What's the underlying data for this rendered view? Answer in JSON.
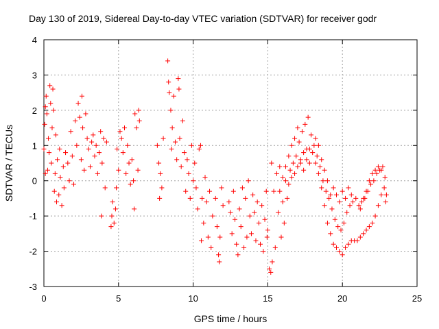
{
  "chart_data": {
    "type": "scatter",
    "title": "Day 130 of 2019, Sidereal Day-to-day VTEC variation (SDTVAR) for receiver godr",
    "xlabel": "GPS time / hours",
    "ylabel": "SDTVAR / TECUs",
    "xlim": [
      0,
      25
    ],
    "ylim": [
      -3,
      4
    ],
    "xticks": [
      0,
      5,
      10,
      15,
      20,
      25
    ],
    "yticks": [
      -3,
      -2,
      -1,
      0,
      1,
      2,
      3,
      4
    ],
    "xtick_labels": [
      "0",
      "5",
      "10",
      "15",
      "20",
      "25"
    ],
    "ytick_labels": [
      "-3",
      "-2",
      "-1",
      "0",
      "1",
      "2",
      "3",
      "4"
    ],
    "grid": true,
    "marker": "+",
    "color": "#ff0000",
    "series": [
      {
        "name": "SDTVAR",
        "points": [
          [
            0.0,
            0.9
          ],
          [
            0.05,
            1.6
          ],
          [
            0.1,
            2.1
          ],
          [
            0.1,
            0.2
          ],
          [
            0.15,
            2.4
          ],
          [
            0.2,
            1.9
          ],
          [
            0.25,
            0.3
          ],
          [
            0.3,
            1.2
          ],
          [
            0.35,
            0.8
          ],
          [
            0.4,
            2.7
          ],
          [
            0.45,
            2.2
          ],
          [
            0.5,
            0.5
          ],
          [
            0.55,
            1.5
          ],
          [
            0.6,
            2.6
          ],
          [
            0.65,
            2.0
          ],
          [
            0.7,
            -0.3
          ],
          [
            0.75,
            0.2
          ],
          [
            0.8,
            1.3
          ],
          [
            0.85,
            -0.6
          ],
          [
            0.9,
            0.6
          ],
          [
            1.0,
            -0.4
          ],
          [
            1.05,
            0.9
          ],
          [
            1.1,
            0.1
          ],
          [
            1.2,
            -0.7
          ],
          [
            1.3,
            0.4
          ],
          [
            1.35,
            -0.2
          ],
          [
            1.45,
            0.8
          ],
          [
            1.6,
            0.5
          ],
          [
            1.7,
            0.0
          ],
          [
            1.8,
            1.4
          ],
          [
            1.9,
            0.7
          ],
          [
            2.0,
            -0.1
          ],
          [
            2.1,
            1.7
          ],
          [
            2.2,
            1.0
          ],
          [
            2.3,
            2.2
          ],
          [
            2.4,
            1.8
          ],
          [
            2.5,
            0.6
          ],
          [
            2.55,
            2.4
          ],
          [
            2.6,
            1.5
          ],
          [
            2.7,
            0.3
          ],
          [
            2.8,
            1.9
          ],
          [
            2.9,
            1.2
          ],
          [
            3.0,
            0.9
          ],
          [
            3.1,
            0.4
          ],
          [
            3.2,
            1.1
          ],
          [
            3.3,
            1.3
          ],
          [
            3.4,
            0.7
          ],
          [
            3.5,
            1.0
          ],
          [
            3.6,
            0.2
          ],
          [
            3.7,
            0.8
          ],
          [
            3.8,
            1.4
          ],
          [
            3.9,
            0.5
          ],
          [
            4.0,
            1.2
          ],
          [
            4.1,
            -0.2
          ],
          [
            4.2,
            1.1
          ],
          [
            3.85,
            -1.0
          ],
          [
            4.5,
            -1.3
          ],
          [
            4.55,
            -1.0
          ],
          [
            4.6,
            -0.6
          ],
          [
            4.7,
            -1.2
          ],
          [
            4.8,
            -0.8
          ],
          [
            4.85,
            -0.2
          ],
          [
            4.9,
            0.9
          ],
          [
            5.0,
            0.3
          ],
          [
            5.1,
            1.4
          ],
          [
            5.2,
            1.2
          ],
          [
            5.3,
            0.8
          ],
          [
            5.4,
            1.5
          ],
          [
            5.5,
            0.2
          ],
          [
            5.6,
            1.0
          ],
          [
            5.7,
            0.5
          ],
          [
            5.8,
            -0.1
          ],
          [
            5.9,
            0.6
          ],
          [
            6.0,
            0.0
          ],
          [
            6.05,
            -0.8
          ],
          [
            6.1,
            1.9
          ],
          [
            6.2,
            1.5
          ],
          [
            6.3,
            0.3
          ],
          [
            6.35,
            2.0
          ],
          [
            6.4,
            1.7
          ],
          [
            7.6,
            1.0
          ],
          [
            7.7,
            0.5
          ],
          [
            7.75,
            -0.5
          ],
          [
            7.8,
            0.2
          ],
          [
            7.9,
            -0.2
          ],
          [
            8.0,
            1.2
          ],
          [
            8.3,
            3.4
          ],
          [
            8.35,
            2.8
          ],
          [
            8.4,
            2.5
          ],
          [
            8.5,
            2.0
          ],
          [
            8.55,
            0.9
          ],
          [
            8.6,
            1.5
          ],
          [
            8.7,
            2.4
          ],
          [
            8.8,
            1.1
          ],
          [
            8.9,
            0.6
          ],
          [
            9.0,
            2.9
          ],
          [
            9.05,
            2.6
          ],
          [
            9.1,
            1.2
          ],
          [
            9.2,
            0.4
          ],
          [
            9.3,
            1.7
          ],
          [
            9.4,
            0.8
          ],
          [
            9.5,
            -0.3
          ],
          [
            9.6,
            0.6
          ],
          [
            9.7,
            0.2
          ],
          [
            9.8,
            -0.5
          ],
          [
            9.9,
            1.0
          ],
          [
            10.0,
            0.0
          ],
          [
            10.1,
            0.5
          ],
          [
            10.2,
            -0.2
          ],
          [
            10.3,
            -0.8
          ],
          [
            10.4,
            0.9
          ],
          [
            10.5,
            1.0
          ],
          [
            10.55,
            -1.7
          ],
          [
            10.6,
            -0.5
          ],
          [
            10.7,
            -1.2
          ],
          [
            10.8,
            0.1
          ],
          [
            10.9,
            -0.6
          ],
          [
            11.0,
            -1.6
          ],
          [
            11.1,
            -0.3
          ],
          [
            11.2,
            -1.9
          ],
          [
            11.3,
            -1.0
          ],
          [
            11.5,
            -0.5
          ],
          [
            11.6,
            -1.3
          ],
          [
            11.7,
            -2.1
          ],
          [
            11.75,
            -2.3
          ],
          [
            11.8,
            -1.6
          ],
          [
            11.9,
            -0.2
          ],
          [
            12.0,
            -0.7
          ],
          [
            12.4,
            -0.6
          ],
          [
            12.5,
            -0.9
          ],
          [
            12.6,
            -1.5
          ],
          [
            12.7,
            -0.3
          ],
          [
            12.8,
            -1.1
          ],
          [
            12.9,
            -1.8
          ],
          [
            13.0,
            -2.1
          ],
          [
            13.1,
            -0.8
          ],
          [
            13.2,
            -1.3
          ],
          [
            13.3,
            -0.2
          ],
          [
            13.4,
            -1.9
          ],
          [
            13.5,
            -0.5
          ],
          [
            13.6,
            -1.6
          ],
          [
            13.7,
            0.0
          ],
          [
            13.8,
            -1.0
          ],
          [
            13.9,
            -1.5
          ],
          [
            14.0,
            -0.4
          ],
          [
            14.1,
            -0.9
          ],
          [
            14.2,
            -1.7
          ],
          [
            14.3,
            -0.6
          ],
          [
            14.4,
            -1.2
          ],
          [
            14.5,
            -1.8
          ],
          [
            14.6,
            -0.7
          ],
          [
            14.7,
            -2.0
          ],
          [
            14.8,
            -1.1
          ],
          [
            14.9,
            -0.3
          ],
          [
            14.95,
            -1.6
          ],
          [
            15.0,
            -1.4
          ],
          [
            15.1,
            -2.5
          ],
          [
            15.2,
            -2.6
          ],
          [
            15.25,
            0.5
          ],
          [
            15.3,
            -2.3
          ],
          [
            15.4,
            -0.3
          ],
          [
            15.5,
            -1.9
          ],
          [
            15.6,
            0.2
          ],
          [
            15.7,
            -0.9
          ],
          [
            15.8,
            0.4
          ],
          [
            15.9,
            -1.6
          ],
          [
            16.0,
            -0.6
          ],
          [
            16.1,
            -1.2
          ],
          [
            16.2,
            0.0
          ],
          [
            16.3,
            -0.5
          ],
          [
            16.4,
            -0.1
          ],
          [
            16.5,
            0.3
          ],
          [
            16.6,
            0.1
          ],
          [
            16.7,
            0.5
          ],
          [
            16.8,
            0.2
          ],
          [
            16.9,
            0.7
          ],
          [
            17.0,
            0.4
          ],
          [
            17.1,
            1.1
          ],
          [
            17.2,
            0.6
          ],
          [
            17.3,
            1.4
          ],
          [
            17.4,
            0.8
          ],
          [
            17.5,
            1.6
          ],
          [
            17.6,
            0.9
          ],
          [
            17.7,
            1.8
          ],
          [
            17.8,
            0.9
          ],
          [
            17.9,
            1.3
          ],
          [
            18.0,
            0.8
          ],
          [
            18.1,
            1.0
          ],
          [
            18.2,
            0.5
          ],
          [
            18.3,
            0.7
          ],
          [
            18.4,
            0.2
          ],
          [
            18.5,
            0.4
          ],
          [
            18.6,
            -0.2
          ],
          [
            18.7,
            0.0
          ],
          [
            18.8,
            -0.7
          ],
          [
            18.9,
            -0.3
          ],
          [
            19.0,
            -1.2
          ],
          [
            19.1,
            -0.5
          ],
          [
            19.2,
            -1.5
          ],
          [
            19.3,
            -0.8
          ],
          [
            19.4,
            -1.8
          ],
          [
            19.5,
            -1.1
          ],
          [
            19.6,
            -1.9
          ],
          [
            19.7,
            -1.3
          ],
          [
            19.8,
            -2.0
          ],
          [
            19.9,
            -1.4
          ],
          [
            20.0,
            -2.1
          ],
          [
            20.1,
            -1.2
          ],
          [
            20.2,
            -1.9
          ],
          [
            20.3,
            -0.9
          ],
          [
            20.4,
            -1.8
          ],
          [
            20.5,
            -0.7
          ],
          [
            20.6,
            -1.7
          ],
          [
            20.7,
            -0.6
          ],
          [
            20.8,
            -1.7
          ],
          [
            20.9,
            -0.5
          ],
          [
            21.0,
            -1.7
          ],
          [
            21.1,
            -0.7
          ],
          [
            21.2,
            -1.6
          ],
          [
            21.3,
            -0.6
          ],
          [
            21.4,
            -1.5
          ],
          [
            21.5,
            -0.5
          ],
          [
            21.6,
            -1.4
          ],
          [
            21.7,
            -0.3
          ],
          [
            21.8,
            -1.3
          ],
          [
            21.9,
            -0.1
          ],
          [
            22.0,
            -1.2
          ],
          [
            22.1,
            0.0
          ],
          [
            22.2,
            -1.0
          ],
          [
            22.3,
            0.2
          ],
          [
            22.4,
            -0.7
          ],
          [
            22.5,
            0.3
          ],
          [
            22.6,
            -0.4
          ],
          [
            22.7,
            0.4
          ],
          [
            22.8,
            -0.2
          ],
          [
            22.85,
            0.1
          ],
          [
            22.9,
            -0.6
          ],
          [
            22.95,
            -0.4
          ],
          [
            19.2,
            -0.4
          ],
          [
            19.4,
            -0.2
          ],
          [
            19.6,
            -0.4
          ],
          [
            19.8,
            -0.6
          ],
          [
            20.0,
            -0.3
          ],
          [
            20.2,
            -0.5
          ],
          [
            20.4,
            -0.2
          ],
          [
            20.6,
            -0.4
          ],
          [
            17.2,
            0.5
          ],
          [
            17.4,
            0.3
          ],
          [
            17.6,
            0.6
          ],
          [
            17.8,
            0.5
          ],
          [
            16.8,
            1.2
          ],
          [
            17.0,
            1.5
          ],
          [
            16.6,
            1.0
          ],
          [
            16.4,
            0.7
          ],
          [
            16.2,
            0.4
          ],
          [
            16.0,
            0.1
          ],
          [
            15.8,
            -0.3
          ],
          [
            18.2,
            1.2
          ],
          [
            18.4,
            1.0
          ],
          [
            18.6,
            0.6
          ],
          [
            18.8,
            0.3
          ],
          [
            19.0,
            0.0
          ],
          [
            21.2,
            -0.8
          ],
          [
            21.4,
            -0.5
          ],
          [
            21.6,
            -0.3
          ],
          [
            21.8,
            0.0
          ],
          [
            22.0,
            0.2
          ],
          [
            22.2,
            0.3
          ],
          [
            22.4,
            0.4
          ],
          [
            22.6,
            0.3
          ]
        ]
      }
    ]
  }
}
